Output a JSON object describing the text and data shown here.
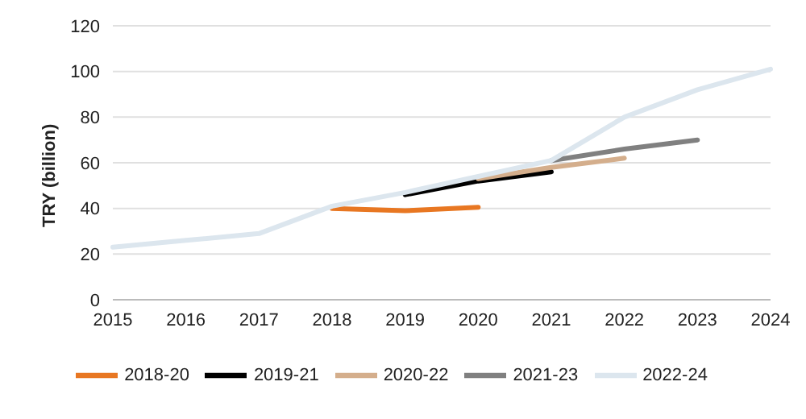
{
  "chart_data": {
    "type": "line",
    "ylabel": "TRY (billion)",
    "categories": [
      "2015",
      "2016",
      "2017",
      "2018",
      "2019",
      "2020",
      "2021",
      "2022",
      "2023",
      "2024"
    ],
    "series": [
      {
        "name": "2018-20",
        "color": "#e87722",
        "values": [
          null,
          null,
          null,
          40,
          39,
          40.5,
          null,
          null,
          null,
          null
        ]
      },
      {
        "name": "2019-21",
        "color": "#000000",
        "values": [
          null,
          null,
          null,
          null,
          46,
          52,
          56,
          null,
          null,
          null
        ]
      },
      {
        "name": "2020-22",
        "color": "#d4ae8c",
        "values": [
          null,
          null,
          null,
          null,
          null,
          53,
          58,
          62,
          null,
          null
        ]
      },
      {
        "name": "2021-23",
        "color": "#808080",
        "values": [
          null,
          null,
          null,
          null,
          null,
          null,
          61,
          66,
          70,
          null
        ]
      },
      {
        "name": "2022-24",
        "color": "#dce6ee",
        "values": [
          23,
          26,
          29,
          41,
          47,
          54,
          61,
          80,
          92,
          101
        ]
      }
    ],
    "ylim": [
      0,
      120
    ],
    "yticks": [
      0,
      20,
      40,
      60,
      80,
      100,
      120
    ],
    "grid": "y",
    "legend": "bottom",
    "marker": "none",
    "line_style": "solid"
  }
}
